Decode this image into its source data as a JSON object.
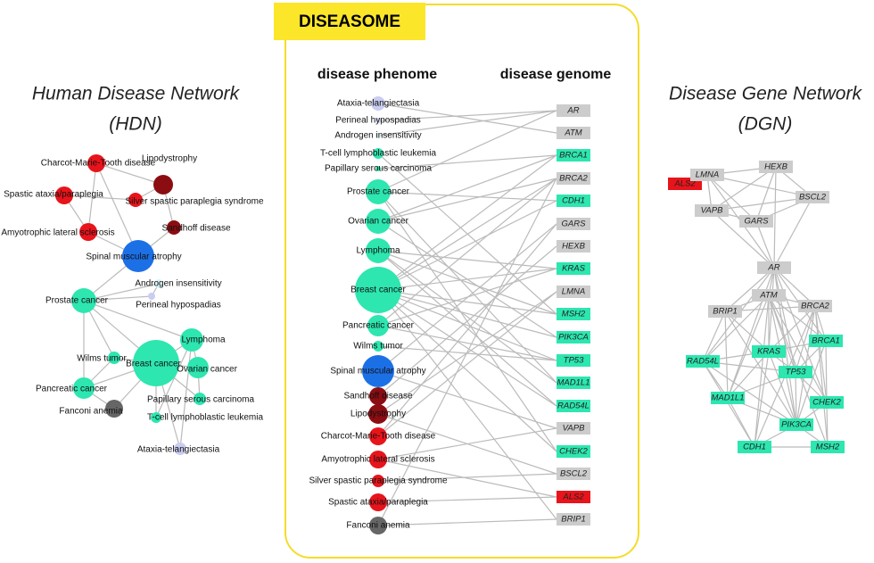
{
  "hdn": {
    "title": "Human Disease Network",
    "subtitle": "(HDN)",
    "nodes": [
      "Charcot-Marie-Tooth disease",
      "Lipodystrophy",
      "Spastic ataxia/paraplegia",
      "Silver spastic paraplegia syndrome",
      "Amyotrophic lateral sclerosis",
      "Sandhoff disease",
      "Spinal muscular atrophy",
      "Androgen insensitivity",
      "Prostate cancer",
      "Perineal hypospadias",
      "Lymphoma",
      "Wilms tumor",
      "Breast cancer",
      "Ovarian cancer",
      "Pancreatic cancer",
      "Fanconi anemia",
      "Papillary serous carcinoma",
      "T-cell lymphoblastic leukemia",
      "Ataxia-telangiectasia"
    ]
  },
  "diseasome": {
    "title": "DISEASOME",
    "phenome_header": "disease phenome",
    "genome_header": "disease genome",
    "phenome": [
      "Ataxia-telangiectasia",
      "Perineal hypospadias",
      "Androgen insensitivity",
      "T-cell lymphoblastic leukemia",
      "Papillary serous carcinoma",
      "Prostate cancer",
      "Ovarian cancer",
      "Lymphoma",
      "Breast cancer",
      "Pancreatic cancer",
      "Wilms tumor",
      "Spinal muscular atrophy",
      "Sandhoff disease",
      "Lipodystrophy",
      "Charcot-Marie-Tooth disease",
      "Amyotrophic lateral sclerosis",
      "Silver spastic paraplegia syndrome",
      "Spastic ataxia/paraplegia",
      "Fanconi anemia"
    ],
    "genome": [
      "AR",
      "ATM",
      "BRCA1",
      "BRCA2",
      "CDH1",
      "GARS",
      "HEXB",
      "KRAS",
      "LMNA",
      "MSH2",
      "PIK3CA",
      "TP53",
      "MAD1L1",
      "RAD54L",
      "VAPB",
      "CHEK2",
      "BSCL2",
      "ALS2",
      "BRIP1"
    ]
  },
  "dgn": {
    "title": "Disease Gene Network",
    "subtitle": "(DGN)",
    "nodes": [
      "ALS2",
      "LMNA",
      "HEXB",
      "BSCL2",
      "VAPB",
      "GARS",
      "AR",
      "ATM",
      "BRIP1",
      "BRCA2",
      "KRAS",
      "BRCA1",
      "RAD54L",
      "TP53",
      "MAD1L1",
      "CHEK2",
      "PIK3CA",
      "CDH1",
      "MSH2"
    ]
  }
}
